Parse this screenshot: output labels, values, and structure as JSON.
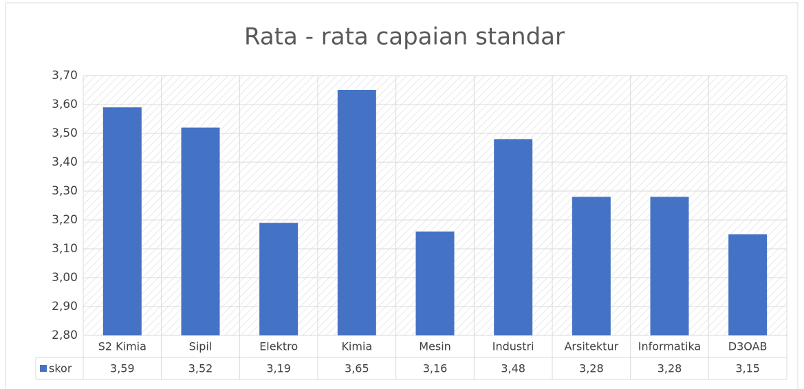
{
  "chart_data": {
    "type": "bar",
    "title": "Rata - rata capaian standar",
    "categories": [
      "S2 Kimia",
      "Sipil",
      "Elektro",
      "Kimia",
      "Mesin",
      "Industri",
      "Arsitektur",
      "Informatika",
      "D3OAB"
    ],
    "series": [
      {
        "name": "skor",
        "color": "#4472c4",
        "values": [
          3.59,
          3.52,
          3.19,
          3.65,
          3.16,
          3.48,
          3.28,
          3.28,
          3.15
        ],
        "value_labels": [
          "3,59",
          "3,52",
          "3,19",
          "3,65",
          "3,16",
          "3,48",
          "3,28",
          "3,28",
          "3,15"
        ]
      }
    ],
    "ylim": [
      2.8,
      3.7
    ],
    "yticks": [
      {
        "value": 2.8,
        "label": "2,80"
      },
      {
        "value": 2.9,
        "label": "2,90"
      },
      {
        "value": 3.0,
        "label": "3,00"
      },
      {
        "value": 3.1,
        "label": "3,10"
      },
      {
        "value": 3.2,
        "label": "3,20"
      },
      {
        "value": 3.3,
        "label": "3,30"
      },
      {
        "value": 3.4,
        "label": "3,40"
      },
      {
        "value": 3.5,
        "label": "3,50"
      },
      {
        "value": 3.6,
        "label": "3,60"
      },
      {
        "value": 3.7,
        "label": "3,70"
      }
    ],
    "grid": true,
    "data_table": true
  }
}
